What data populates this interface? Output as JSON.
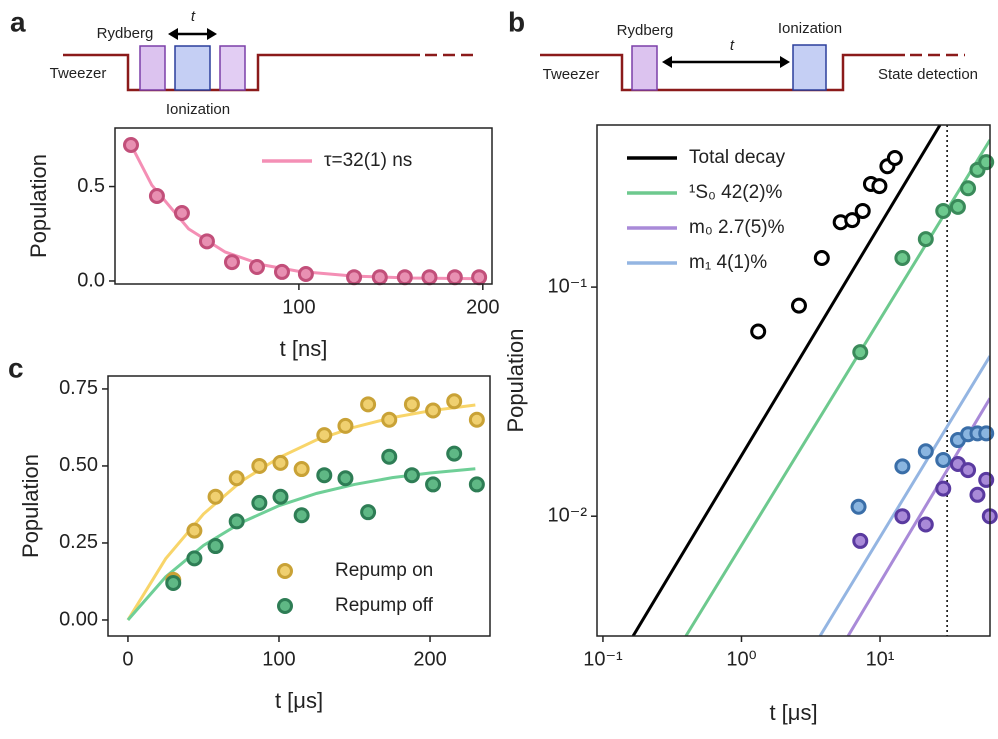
{
  "panel_labels": [
    "a",
    "b",
    "c"
  ],
  "diagrams": {
    "a": {
      "rydberg": "Rydberg",
      "t": "t",
      "tweezer": "Tweezer",
      "ionization": "Ionization"
    },
    "b": {
      "rydberg": "Rydberg",
      "t": "t",
      "ionization": "Ionization",
      "tweezer": "Tweezer",
      "state_detection": "State detection"
    }
  },
  "chart_data": [
    {
      "type": "scatter",
      "xlabel": "t [ns]",
      "ylabel": "Population",
      "xlim": [
        0,
        205
      ],
      "ylim": [
        -0.016,
        0.81
      ],
      "xticks": [
        100,
        200
      ],
      "yticks": [
        {
          "value": 0,
          "label": "0.0"
        },
        {
          "value": 0.5,
          "label": "0.5"
        }
      ],
      "legend": "upper right",
      "series": [
        {
          "name": "τ=32(1) ns",
          "mode": "line",
          "color": "#f48fb5",
          "x": [
            8,
            20,
            40,
            60,
            80,
            100,
            130,
            160,
            200
          ],
          "values": [
            0.734,
            0.508,
            0.276,
            0.153,
            0.086,
            0.051,
            0.026,
            0.016,
            0.012
          ]
        },
        {
          "mode": "markers",
          "color": "#c24f7a",
          "fill": "#e890b2",
          "x": [
            8.7,
            22.8,
            36.4,
            50,
            63.6,
            77.2,
            90.8,
            103.8,
            130,
            144,
            157.6,
            171,
            184.8,
            198
          ],
          "values": [
            0.72,
            0.45,
            0.36,
            0.21,
            0.1,
            0.074,
            0.048,
            0.037,
            0.02,
            0.02,
            0.02,
            0.02,
            0.02,
            0.02
          ]
        }
      ]
    },
    {
      "type": "scatter",
      "xlabel": "t [μs]",
      "ylabel": "Population",
      "xlim": [
        -13.2,
        239.7
      ],
      "ylim": [
        -0.052,
        0.792
      ],
      "xticks": [
        0,
        100,
        200
      ],
      "yticks": [
        {
          "value": 0,
          "label": "0.00"
        },
        {
          "value": 0.25,
          "label": "0.25"
        },
        {
          "value": 0.5,
          "label": "0.50"
        },
        {
          "value": 0.75,
          "label": "0.75"
        }
      ],
      "legend": "lower right",
      "series": [
        {
          "mode": "line",
          "color": "#f8d56a",
          "x": [
            0,
            25,
            50,
            75,
            100,
            125,
            150,
            175,
            200,
            230
          ],
          "values": [
            0,
            0.199,
            0.344,
            0.45,
            0.527,
            0.585,
            0.626,
            0.657,
            0.679,
            0.698
          ]
        },
        {
          "mode": "line",
          "color": "#6fcf97",
          "x": [
            0,
            25,
            50,
            75,
            100,
            125,
            150,
            175,
            200,
            230
          ],
          "values": [
            0,
            0.14,
            0.242,
            0.316,
            0.371,
            0.411,
            0.44,
            0.462,
            0.477,
            0.491
          ]
        },
        {
          "name": "Repump on",
          "mode": "markers",
          "color": "#c9a236",
          "fill": "#f0d070",
          "x": [
            30,
            44,
            58,
            72,
            87,
            101,
            115,
            130,
            144,
            159,
            173,
            188,
            202,
            216,
            231
          ],
          "values": [
            0.13,
            0.29,
            0.4,
            0.46,
            0.5,
            0.51,
            0.49,
            0.6,
            0.63,
            0.7,
            0.65,
            0.7,
            0.68,
            0.71,
            0.65
          ]
        },
        {
          "name": "Repump off",
          "mode": "markers",
          "color": "#2e7d55",
          "fill": "#5fb885",
          "x": [
            30,
            44,
            58,
            72,
            87,
            101,
            115,
            130,
            144,
            159,
            173,
            188,
            202,
            216,
            231
          ],
          "values": [
            0.12,
            0.2,
            0.24,
            0.32,
            0.38,
            0.4,
            0.34,
            0.47,
            0.46,
            0.35,
            0.53,
            0.47,
            0.44,
            0.54,
            0.44
          ]
        }
      ]
    },
    {
      "type": "scatter",
      "xlabel": "t [μs]",
      "ylabel": "Population",
      "xscale": "log",
      "yscale": "log",
      "xlim": [
        0.0906,
        62.2
      ],
      "ylim": [
        0.003,
        0.51
      ],
      "xticks": [
        {
          "value": 0.1,
          "label": "10⁻¹"
        },
        {
          "value": 1,
          "label": "10⁰"
        },
        {
          "value": 10,
          "label": "10¹"
        }
      ],
      "yticks": [
        {
          "value": 0.01,
          "label": "10⁻²"
        },
        {
          "value": 0.1,
          "label": "10⁻¹"
        }
      ],
      "vline": 30.5,
      "legend": "upper left",
      "series": [
        {
          "name": "Total decay",
          "mode": "line",
          "color": "#000000",
          "x": [
            0.165,
            27.1
          ],
          "values": [
            0.003,
            0.51
          ]
        },
        {
          "name": "¹S₀  42(2)%",
          "mode": "line",
          "color": "#6dc98e",
          "x": [
            0.397,
            62.2
          ],
          "values": [
            0.003,
            0.439
          ]
        },
        {
          "name": "m₀  2.7(5)%",
          "mode": "line",
          "color": "#a98ad8",
          "x": [
            5.88,
            62.2
          ],
          "values": [
            0.003,
            0.0327
          ]
        },
        {
          "name": "m₁  4(1)%",
          "mode": "line",
          "color": "#94b5e2",
          "x": [
            3.69,
            62.2
          ],
          "values": [
            0.003,
            0.05
          ]
        },
        {
          "mode": "markers",
          "color": "#000000",
          "fill": "#ffffff",
          "x": [
            1.32,
            2.6,
            3.8,
            5.2,
            6.3,
            7.5,
            8.6,
            9.9,
            11.3,
            12.8
          ],
          "values": [
            0.064,
            0.083,
            0.134,
            0.192,
            0.196,
            0.215,
            0.282,
            0.276,
            0.337,
            0.366
          ]
        },
        {
          "mode": "markers",
          "color": "#3a8a5a",
          "fill": "#6dc98e",
          "x": [
            7.2,
            14.5,
            21.4,
            28.6,
            36.5,
            43.2,
            50.5,
            58.4
          ],
          "values": [
            0.052,
            0.134,
            0.162,
            0.215,
            0.224,
            0.27,
            0.325,
            0.351
          ]
        },
        {
          "mode": "markers",
          "color": "#3a6ea8",
          "fill": "#8ab5e0",
          "x": [
            7.0,
            14.5,
            21.4,
            28.6,
            36.5,
            43.2,
            50.5,
            58.4
          ],
          "values": [
            0.011,
            0.0165,
            0.0192,
            0.0176,
            0.0215,
            0.0228,
            0.023,
            0.023
          ]
        },
        {
          "mode": "markers",
          "color": "#5a3aa0",
          "fill": "#a98ad8",
          "x": [
            7.2,
            14.5,
            21.4,
            28.6,
            36.5,
            43.2,
            50.5,
            58.4,
            62
          ],
          "values": [
            0.0078,
            0.01,
            0.0092,
            0.0132,
            0.0169,
            0.0159,
            0.0124,
            0.0144,
            0.01
          ]
        }
      ]
    }
  ]
}
